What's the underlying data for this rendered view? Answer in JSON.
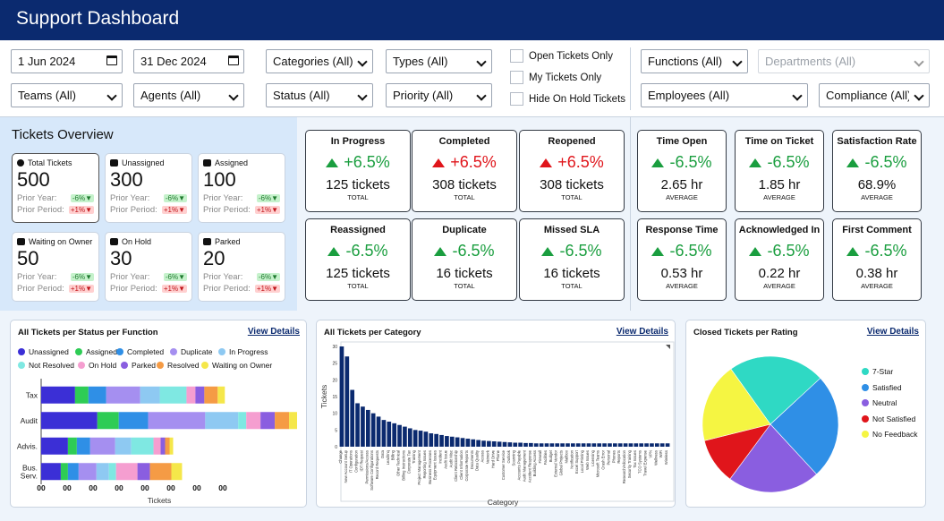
{
  "header": {
    "title": "Support Dashboard"
  },
  "filters": {
    "start_date": "1 Jun 2024",
    "end_date": "31 Dec 2024",
    "categories": "Categories (All)",
    "types": "Types (All)",
    "teams": "Teams (All)",
    "agents": "Agents (All)",
    "status": "Status (All)",
    "priority": "Priority (All)",
    "open_only": "Open Tickets Only",
    "my_tickets": "My Tickets Only",
    "hide_on_hold": "Hide On Hold Tickets",
    "functions": "Functions (All)",
    "departments": "Departments (All)",
    "employees": "Employees (All)",
    "compliance": "Compliance (All)"
  },
  "overview": {
    "title": "Tickets Overview",
    "prior_year_label": "Prior Year:",
    "prior_period_label": "Prior Period:",
    "cards": [
      {
        "label": "Total Tickets",
        "value": "500",
        "icon": "circle-icon",
        "py": "-6%▼",
        "pp": "+1%▼"
      },
      {
        "label": "Unassigned",
        "value": "300",
        "icon": "user-remove-icon",
        "py": "-6%▼",
        "pp": "+1%▼"
      },
      {
        "label": "Assigned",
        "value": "100",
        "icon": "user-add-icon",
        "py": "-6%▼",
        "pp": "+1%▼"
      },
      {
        "label": "Waiting on Owner",
        "value": "50",
        "icon": "users-icon",
        "py": "-6%▼",
        "pp": "+1%▼"
      },
      {
        "label": "On Hold",
        "value": "30",
        "icon": "pause-icon",
        "py": "-6%▼",
        "pp": "+1%▼"
      },
      {
        "label": "Parked",
        "value": "20",
        "icon": "parking-icon",
        "py": "-6%▼",
        "pp": "+1%▼"
      }
    ]
  },
  "kpis": {
    "status": [
      {
        "title": "In Progress",
        "change": "+6.5%",
        "dir": "up",
        "color": "#1a9e3f",
        "value": "125 tickets",
        "foot": "TOTAL"
      },
      {
        "title": "Completed",
        "change": "+6.5%",
        "dir": "up",
        "color": "#e0151b",
        "value": "308 tickets",
        "foot": "TOTAL"
      },
      {
        "title": "Reopened",
        "change": "+6.5%",
        "dir": "up",
        "color": "#e0151b",
        "value": "308 tickets",
        "foot": "TOTAL"
      },
      {
        "title": "Reassigned",
        "change": "-6.5%",
        "dir": "up",
        "color": "#1a9e3f",
        "value": "125 tickets",
        "foot": "TOTAL"
      },
      {
        "title": "Duplicate",
        "change": "-6.5%",
        "dir": "up",
        "color": "#1a9e3f",
        "value": "16 tickets",
        "foot": "TOTAL"
      },
      {
        "title": "Missed SLA",
        "change": "-6.5%",
        "dir": "up",
        "color": "#1a9e3f",
        "value": "16 tickets",
        "foot": "TOTAL"
      }
    ],
    "timing": [
      {
        "title": "Time Open",
        "change": "-6.5%",
        "color": "#1a9e3f",
        "value": "2.65 hr",
        "foot": "AVERAGE"
      },
      {
        "title": "Time on Ticket",
        "change": "-6.5%",
        "color": "#1a9e3f",
        "value": "1.85 hr",
        "foot": "AVERAGE"
      },
      {
        "title": "Satisfaction Rate",
        "change": "-6.5%",
        "color": "#1a9e3f",
        "value": "68.9%",
        "foot": "AVERAGE"
      },
      {
        "title": "Response Time",
        "change": "-6.5%",
        "color": "#1a9e3f",
        "value": "0.53 hr",
        "foot": "AVERAGE"
      },
      {
        "title": "Acknowledged In",
        "change": "-6.5%",
        "color": "#1a9e3f",
        "value": "0.22 hr",
        "foot": "AVERAGE"
      },
      {
        "title": "First Comment",
        "change": "-6.5%",
        "color": "#1a9e3f",
        "value": "0.38 hr",
        "foot": "AVERAGE"
      }
    ]
  },
  "panels": {
    "view_details": "View Details",
    "status_function": {
      "title": "All Tickets per Status per Function"
    },
    "category": {
      "title": "All Tickets per Category"
    },
    "rating": {
      "title": "Closed Tickets per Rating"
    }
  },
  "chart_data": [
    {
      "type": "bar",
      "orientation": "horizontal-stacked",
      "title": "All Tickets per Status per Function",
      "xlabel": "Tickets",
      "x_tick_labels": [
        "00",
        "00",
        "00",
        "00",
        "00",
        "00",
        "00",
        "00"
      ],
      "categories": [
        "Tax",
        "Audit",
        "Advis.",
        "Bus. Serv."
      ],
      "series": [
        {
          "name": "Unassigned",
          "color": "#3b2fd6",
          "values": [
            38,
            63,
            30,
            22
          ]
        },
        {
          "name": "Assigned",
          "color": "#2ecc55",
          "values": [
            15,
            24,
            10,
            8
          ]
        },
        {
          "name": "Completed",
          "color": "#2f8fe6",
          "values": [
            20,
            33,
            15,
            12
          ]
        },
        {
          "name": "Duplicate",
          "color": "#a58ff0",
          "values": [
            38,
            64,
            28,
            20
          ]
        },
        {
          "name": "In Progress",
          "color": "#8ec9f2",
          "values": [
            22,
            37,
            18,
            14
          ]
        },
        {
          "name": "Not Resolved",
          "color": "#7fe8e2",
          "values": [
            30,
            9,
            25,
            8
          ]
        },
        {
          "name": "On Hold",
          "color": "#f59ed0",
          "values": [
            10,
            16,
            8,
            24
          ]
        },
        {
          "name": "Parked",
          "color": "#8a5ee0",
          "values": [
            10,
            16,
            5,
            14
          ]
        },
        {
          "name": "Resolved",
          "color": "#f59b45",
          "values": [
            15,
            16,
            5,
            24
          ]
        },
        {
          "name": "Waiting on Owner",
          "color": "#f5e74a",
          "values": [
            8,
            9,
            4,
            12
          ]
        }
      ],
      "legend": "top"
    },
    {
      "type": "bar",
      "title": "All Tickets per Category",
      "xlabel": "Category",
      "ylabel": "Tickets",
      "ylim": [
        0,
        30
      ],
      "yticks": [
        0,
        5,
        10,
        15,
        20,
        25,
        30
      ],
      "color": "#0b2a6f",
      "categories": [
        "Change",
        "New Account Setup",
        "IT Operations",
        "Configuration",
        "IDT Request",
        "Permissions/Access",
        "Software Configurations",
        "Record Requests",
        "Data",
        "Lead/Inq",
        "Billing",
        "Other Technical",
        "Billing Instructions",
        "Corporate Tax",
        "Training",
        "Project Management",
        "Reporting Issues",
        "Business Processes",
        "Equipment Issues",
        "Incident",
        "Audit Issue",
        "Audit Misc",
        "Client Relationship",
        "Client Information",
        "Corporate Reports",
        "Documents",
        "Data Quality",
        "Access",
        "Network",
        "Hard Drive",
        "Phone",
        "Customer Service",
        "Outlook",
        "Scanning",
        "Accounts Payable",
        "Audit Management",
        "Accident Response",
        "Building Access",
        "Firewall",
        "Facilities",
        "Budget",
        "External Vendor",
        "Global Projects",
        "Mailbox",
        "Notification",
        "Excel Support",
        "Local Printing",
        "Web Issues",
        "Licensing",
        "Microsoft Teams",
        "Crash Error",
        "Personal",
        "Phones",
        "Reports",
        "Research/Allocation",
        "Security Training",
        "Tax Issues",
        "TCO Systems",
        "Travel Expense",
        "VPN",
        "Wellness",
        "WiFi",
        "Wireless"
      ],
      "values": [
        30,
        27,
        17,
        13,
        12,
        11,
        10,
        9,
        8,
        7.5,
        7,
        6.5,
        6,
        5.5,
        5,
        4.8,
        4.5,
        4,
        3.8,
        3.5,
        3.2,
        3,
        2.8,
        2.6,
        2.4,
        2.2,
        2,
        1.8,
        1.7,
        1.6,
        1.5,
        1.4,
        1.3,
        1.2,
        1.2,
        1.1,
        1.1,
        1,
        1,
        1,
        1,
        1,
        1,
        1,
        1,
        1,
        1,
        1,
        1,
        1,
        1,
        1,
        1,
        1,
        1,
        1,
        1,
        1,
        1,
        1,
        1,
        1,
        1
      ]
    },
    {
      "type": "pie",
      "title": "Closed Tickets per Rating",
      "legend": "right",
      "categories": [
        "7-Star",
        "Satisfied",
        "Neutral",
        "Not Satisfied",
        "No Feedback"
      ],
      "values": [
        23,
        25,
        22,
        11,
        19
      ],
      "colors": [
        "#2fd9c4",
        "#2f8fe6",
        "#8a5ee0",
        "#e0151b",
        "#f5f542"
      ]
    }
  ]
}
